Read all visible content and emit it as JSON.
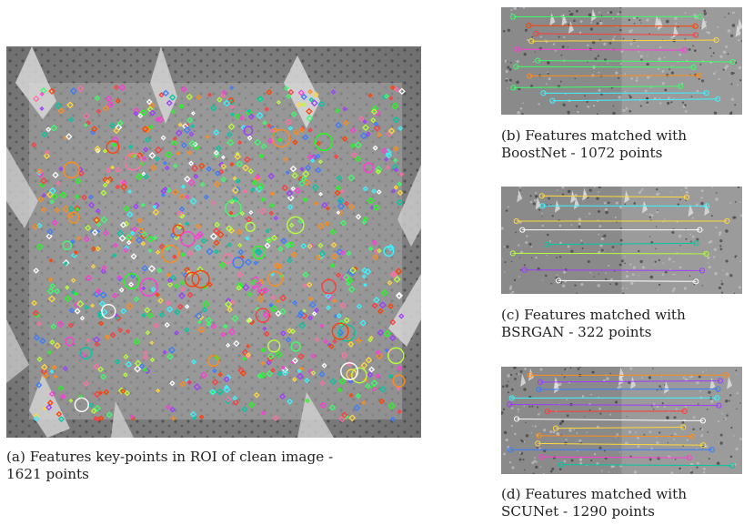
{
  "figure": {
    "main_panel": {
      "caption_line1": "(a) Features key-points in ROI of clean image -",
      "caption_line2": "1621 points"
    },
    "match_panels": [
      {
        "caption_line1": "(b) Features matched with",
        "caption_line2": "BoostNet - 1072 points"
      },
      {
        "caption_line1": "(c) Features matched with",
        "caption_line2": "BSRGAN - 322 points"
      },
      {
        "caption_line1": "(d) Features matched with",
        "caption_line2": "SCUNet - 1290 points"
      }
    ]
  }
}
